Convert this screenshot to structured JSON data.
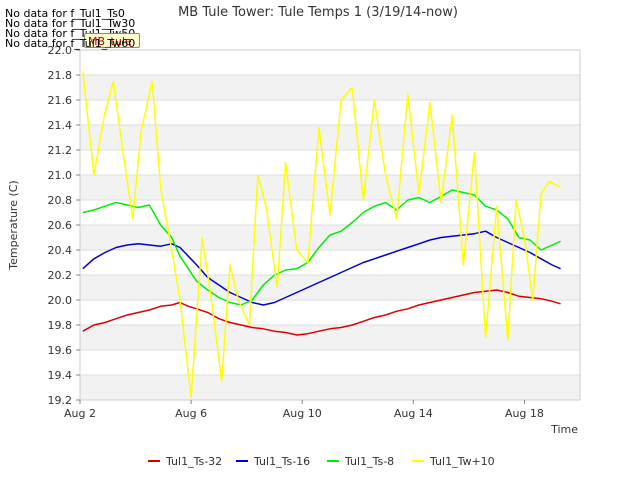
{
  "no_data_lines": [
    "No data for f_Tul1_Ts0",
    "No data for f_Tul1_Tw30",
    "No data for f_Tul1_Tw50",
    "No data for f_Tul1_Tw60"
  ],
  "badge_label": "MB_tule",
  "colors": {
    "Tul1_Ts-32": "#dd0000",
    "Tul1_Ts-16": "#0000cc",
    "Tul1_Ts-8": "#00ee00",
    "Tul1_Tw+10": "#ffff00"
  },
  "chart_data": {
    "type": "line",
    "title": "MB Tule Tower: Tule Temps 1 (3/19/14-now)",
    "xlabel": "Time",
    "ylabel": "Temperature (C)",
    "xlim": [
      0,
      18
    ],
    "ylim": [
      19.2,
      22.0
    ],
    "xticks": [
      {
        "value": 0,
        "label": "Aug 2"
      },
      {
        "value": 4,
        "label": "Aug 6"
      },
      {
        "value": 8,
        "label": "Aug 10"
      },
      {
        "value": 12,
        "label": "Aug 14"
      },
      {
        "value": 16,
        "label": "Aug 18"
      }
    ],
    "yticks": [
      "19.2",
      "19.4",
      "19.6",
      "19.8",
      "20.0",
      "20.2",
      "20.4",
      "20.6",
      "20.8",
      "21.0",
      "21.2",
      "21.4",
      "21.6",
      "21.8",
      "22.0"
    ],
    "legend_position": "bottom",
    "series": [
      {
        "name": "Tul1_Ts-32",
        "x": [
          0.1,
          0.5,
          0.9,
          1.3,
          1.7,
          2.1,
          2.5,
          2.9,
          3.3,
          3.6,
          3.9,
          4.2,
          4.6,
          5.0,
          5.4,
          5.8,
          6.2,
          6.6,
          7.0,
          7.4,
          7.8,
          8.2,
          8.6,
          9.0,
          9.4,
          9.8,
          10.2,
          10.6,
          11.0,
          11.4,
          11.8,
          12.2,
          12.6,
          13.0,
          13.4,
          13.8,
          14.2,
          14.6,
          15.0,
          15.4,
          15.8,
          16.2,
          16.6,
          17.0,
          17.3
        ],
        "values": [
          19.75,
          19.8,
          19.82,
          19.85,
          19.88,
          19.9,
          19.92,
          19.95,
          19.96,
          19.98,
          19.95,
          19.93,
          19.9,
          19.85,
          19.82,
          19.8,
          19.78,
          19.77,
          19.75,
          19.74,
          19.72,
          19.73,
          19.75,
          19.77,
          19.78,
          19.8,
          19.83,
          19.86,
          19.88,
          19.91,
          19.93,
          19.96,
          19.98,
          20.0,
          20.02,
          20.04,
          20.06,
          20.07,
          20.08,
          20.06,
          20.03,
          20.02,
          20.01,
          19.99,
          19.97
        ]
      },
      {
        "name": "Tul1_Ts-16",
        "x": [
          0.1,
          0.5,
          0.9,
          1.3,
          1.7,
          2.1,
          2.5,
          2.9,
          3.3,
          3.6,
          3.9,
          4.2,
          4.6,
          5.0,
          5.4,
          5.8,
          6.2,
          6.6,
          7.0,
          7.4,
          7.8,
          8.2,
          8.6,
          9.0,
          9.4,
          9.8,
          10.2,
          10.6,
          11.0,
          11.4,
          11.8,
          12.2,
          12.6,
          13.0,
          13.4,
          13.8,
          14.2,
          14.6,
          15.0,
          15.4,
          15.8,
          16.2,
          16.6,
          17.0,
          17.3
        ],
        "values": [
          20.25,
          20.33,
          20.38,
          20.42,
          20.44,
          20.45,
          20.44,
          20.43,
          20.45,
          20.42,
          20.35,
          20.28,
          20.18,
          20.12,
          20.06,
          20.02,
          19.98,
          19.96,
          19.98,
          20.02,
          20.06,
          20.1,
          20.14,
          20.18,
          20.22,
          20.26,
          20.3,
          20.33,
          20.36,
          20.39,
          20.42,
          20.45,
          20.48,
          20.5,
          20.51,
          20.52,
          20.53,
          20.55,
          20.5,
          20.46,
          20.42,
          20.38,
          20.33,
          20.28,
          20.25
        ]
      },
      {
        "name": "Tul1_Ts-8",
        "x": [
          0.1,
          0.5,
          0.9,
          1.3,
          1.7,
          2.1,
          2.5,
          2.9,
          3.3,
          3.6,
          3.9,
          4.2,
          4.6,
          5.0,
          5.4,
          5.8,
          6.2,
          6.6,
          7.0,
          7.4,
          7.8,
          8.2,
          8.6,
          9.0,
          9.4,
          9.8,
          10.2,
          10.6,
          11.0,
          11.4,
          11.8,
          12.2,
          12.6,
          13.0,
          13.4,
          13.8,
          14.2,
          14.6,
          15.0,
          15.4,
          15.8,
          16.2,
          16.6,
          17.0,
          17.3
        ],
        "values": [
          20.7,
          20.72,
          20.75,
          20.78,
          20.76,
          20.74,
          20.76,
          20.6,
          20.5,
          20.35,
          20.25,
          20.15,
          20.08,
          20.02,
          19.98,
          19.96,
          20.0,
          20.12,
          20.2,
          20.24,
          20.25,
          20.3,
          20.42,
          20.52,
          20.55,
          20.62,
          20.7,
          20.75,
          20.78,
          20.72,
          20.8,
          20.82,
          20.78,
          20.83,
          20.88,
          20.86,
          20.84,
          20.75,
          20.72,
          20.65,
          20.5,
          20.48,
          20.4,
          20.44,
          20.47
        ]
      },
      {
        "name": "Tul1_Tw+10",
        "x": [
          0.1,
          0.5,
          0.9,
          1.2,
          1.6,
          1.9,
          2.2,
          2.6,
          2.9,
          3.3,
          3.6,
          4.0,
          4.4,
          4.7,
          5.1,
          5.4,
          5.7,
          6.1,
          6.4,
          6.7,
          7.1,
          7.4,
          7.8,
          8.2,
          8.6,
          9.0,
          9.4,
          9.8,
          10.2,
          10.6,
          11.0,
          11.4,
          11.8,
          12.2,
          12.6,
          13.0,
          13.4,
          13.8,
          14.2,
          14.6,
          15.0,
          15.4,
          15.7,
          16.0,
          16.3,
          16.6,
          16.9,
          17.3
        ],
        "values": [
          21.83,
          21.0,
          21.5,
          21.75,
          21.1,
          20.65,
          21.35,
          21.75,
          20.9,
          20.4,
          20.0,
          19.22,
          20.5,
          20.05,
          19.35,
          20.28,
          20.0,
          19.8,
          21.0,
          20.75,
          20.1,
          21.1,
          20.4,
          20.3,
          21.38,
          20.68,
          21.6,
          21.7,
          20.8,
          21.6,
          21.0,
          20.65,
          21.65,
          20.85,
          21.58,
          20.78,
          21.48,
          20.28,
          21.18,
          19.7,
          20.75,
          19.68,
          20.8,
          20.5,
          20.0,
          20.85,
          20.95,
          20.9
        ]
      }
    ]
  }
}
